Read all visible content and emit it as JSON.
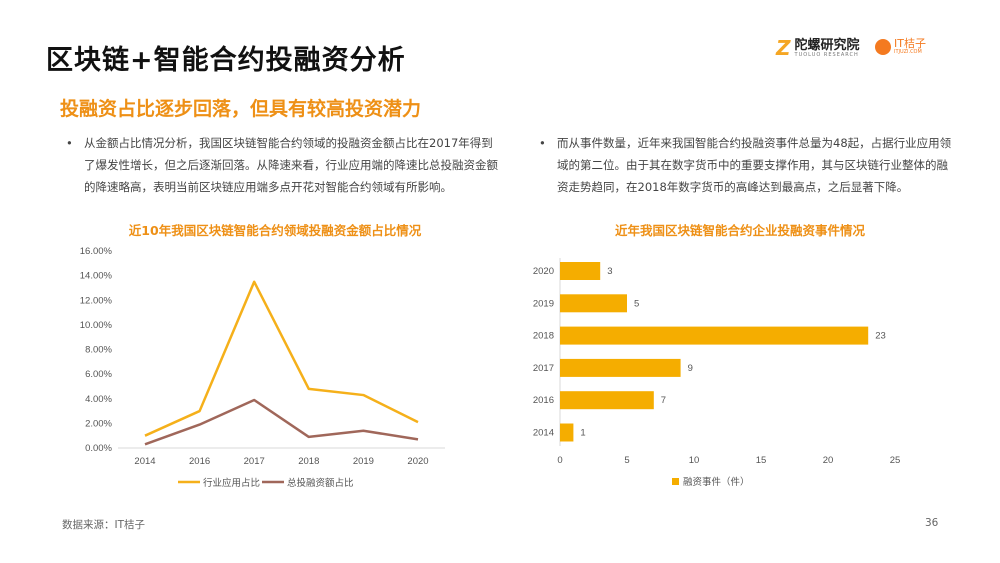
{
  "header": {
    "title": "区块链+智能合约投融资分析",
    "subtitle": "投融资占比逐步回落，但具有较高投资潜力",
    "logos": {
      "tuoluo": {
        "mark": "Z",
        "name": "陀螺研究院",
        "tagline": "TUOLUO RESEARCH"
      },
      "itjuzi": {
        "name": "IT桔子",
        "tagline": "ITJUZI.COM"
      }
    }
  },
  "paragraphs": [
    {
      "bullet": "•",
      "text": "从金额占比情况分析，我国区块链智能合约领域的投融资金额占比在2017年得到了爆发性增长，但之后逐渐回落。从降速来看，行业应用端的降速比总投融资金额的降速略高，表明当前区块链应用端多点开花对智能合约领域有所影响。"
    },
    {
      "bullet": "•",
      "text": "而从事件数量，近年来我国智能合约投融资事件总量为48起，占据行业应用领域的第二位。由于其在数字货币中的重要支撑作用，其与区块链行业整体的融资走势趋同，在2018年数字货币的高峰达到最高点，之后显著下降。"
    }
  ],
  "chart_data": [
    {
      "type": "line",
      "title": "近10年我国区块链智能合约领域投融资金额占比情况",
      "categories": [
        "2014",
        "2016",
        "2017",
        "2018",
        "2019",
        "2020"
      ],
      "ylim": [
        0,
        16
      ],
      "yticks": [
        "0.00%",
        "2.00%",
        "4.00%",
        "6.00%",
        "8.00%",
        "10.00%",
        "12.00%",
        "14.00%",
        "16.00%"
      ],
      "grid": false,
      "legend": "bottom",
      "series": [
        {
          "name": "行业应用占比",
          "color": "#f5b01a",
          "values": [
            1.0,
            3.0,
            13.5,
            4.8,
            4.3,
            2.1
          ]
        },
        {
          "name": "总投融资额占比",
          "color": "#a0675a",
          "values": [
            0.3,
            1.9,
            3.9,
            0.9,
            1.4,
            0.7
          ]
        }
      ]
    },
    {
      "type": "bar",
      "orientation": "horizontal",
      "title": "近年我国区块链智能合约企业投融资事件情况",
      "categories": [
        "2020",
        "2019",
        "2018",
        "2017",
        "2016",
        "2014"
      ],
      "values": [
        3,
        5,
        23,
        9,
        7,
        1
      ],
      "xlim": [
        0,
        25
      ],
      "xticks": [
        "0",
        "5",
        "10",
        "15",
        "20",
        "25"
      ],
      "grid": false,
      "legend": "bottom",
      "series": [
        {
          "name": "融资事件（件）",
          "color": "#f5ad00"
        }
      ]
    }
  ],
  "footer": {
    "source": "数据来源：IT桔子",
    "page": "36"
  }
}
